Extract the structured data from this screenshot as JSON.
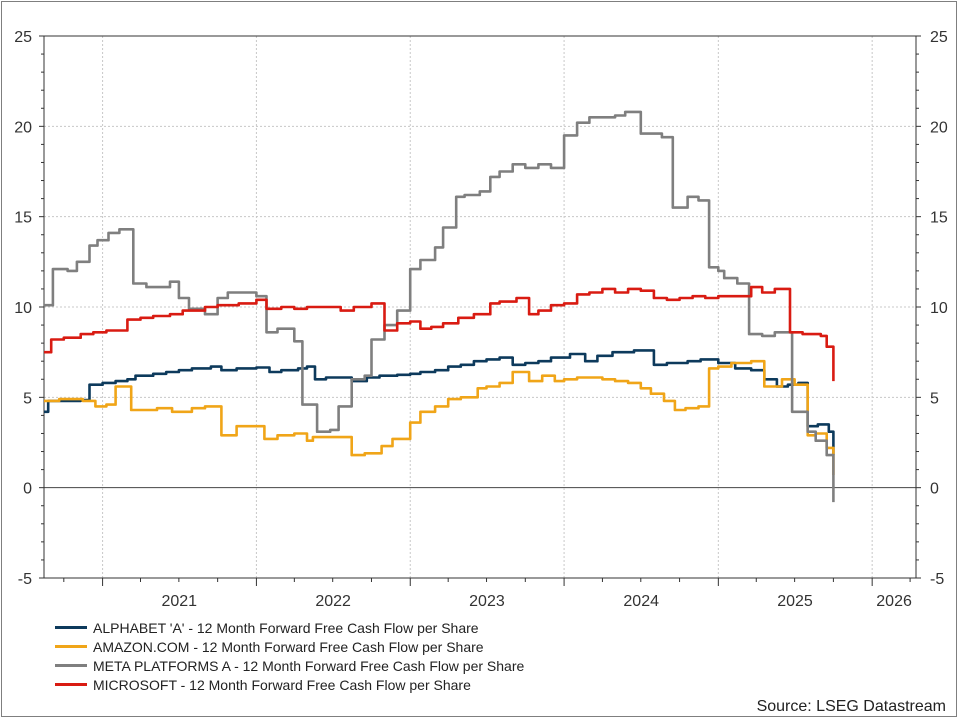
{
  "chart_data": {
    "type": "line",
    "ylim": [
      -5,
      25
    ],
    "yticks": [
      -5,
      0,
      5,
      10,
      15,
      20,
      25
    ],
    "x_range": [
      "2020-08-15",
      "2026-04-15"
    ],
    "x_tick_labels": [
      {
        "label": "2021",
        "date": "2021-01-01"
      },
      {
        "label": "2022",
        "date": "2022-01-01"
      },
      {
        "label": "2023",
        "date": "2023-01-01"
      },
      {
        "label": "2024",
        "date": "2024-01-01"
      },
      {
        "label": "2025",
        "date": "2025-01-01"
      },
      {
        "label": "2026",
        "date": "2026-01-01"
      }
    ],
    "grid": true,
    "step": true,
    "legend_position": "bottom-left",
    "series": [
      {
        "name": "ALPHABET 'A' - 12 Month Forward Free Cash Flow per Share",
        "color": "#0d3a5c",
        "points": [
          [
            "2020-08-15",
            4.2
          ],
          [
            "2020-08-25",
            4.8
          ],
          [
            "2020-10-01",
            4.8
          ],
          [
            "2020-11-10",
            4.85
          ],
          [
            "2020-12-01",
            5.7
          ],
          [
            "2021-01-01",
            5.8
          ],
          [
            "2021-02-01",
            5.9
          ],
          [
            "2021-03-01",
            6.0
          ],
          [
            "2021-03-20",
            6.2
          ],
          [
            "2021-05-01",
            6.3
          ],
          [
            "2021-06-01",
            6.4
          ],
          [
            "2021-07-01",
            6.5
          ],
          [
            "2021-08-01",
            6.6
          ],
          [
            "2021-09-15",
            6.7
          ],
          [
            "2021-10-10",
            6.5
          ],
          [
            "2021-11-15",
            6.6
          ],
          [
            "2022-01-01",
            6.65
          ],
          [
            "2022-02-01",
            6.4
          ],
          [
            "2022-03-01",
            6.5
          ],
          [
            "2022-04-10",
            6.6
          ],
          [
            "2022-05-01",
            6.7
          ],
          [
            "2022-05-20",
            6.0
          ],
          [
            "2022-06-15",
            6.1
          ],
          [
            "2022-08-15",
            5.9
          ],
          [
            "2022-09-20",
            6.1
          ],
          [
            "2022-10-20",
            6.2
          ],
          [
            "2022-12-01",
            6.25
          ],
          [
            "2023-01-01",
            6.3
          ],
          [
            "2023-01-25",
            6.4
          ],
          [
            "2023-03-01",
            6.5
          ],
          [
            "2023-04-01",
            6.7
          ],
          [
            "2023-05-01",
            6.8
          ],
          [
            "2023-06-01",
            7.0
          ],
          [
            "2023-07-01",
            7.1
          ],
          [
            "2023-08-01",
            7.2
          ],
          [
            "2023-09-01",
            6.8
          ],
          [
            "2023-10-01",
            6.9
          ],
          [
            "2023-11-01",
            7.0
          ],
          [
            "2023-12-01",
            7.2
          ],
          [
            "2024-01-15",
            7.4
          ],
          [
            "2024-02-20",
            7.0
          ],
          [
            "2024-03-20",
            7.3
          ],
          [
            "2024-04-25",
            7.5
          ],
          [
            "2024-06-15",
            7.6
          ],
          [
            "2024-08-01",
            6.8
          ],
          [
            "2024-09-01",
            6.9
          ],
          [
            "2024-10-20",
            7.0
          ],
          [
            "2024-11-20",
            7.1
          ],
          [
            "2025-01-01",
            6.9
          ],
          [
            "2025-02-10",
            6.6
          ],
          [
            "2025-03-20",
            6.5
          ],
          [
            "2025-04-20",
            6.0
          ],
          [
            "2025-05-20",
            5.6
          ],
          [
            "2025-06-15",
            5.7
          ],
          [
            "2025-07-10",
            5.8
          ],
          [
            "2025-08-01",
            3.4
          ],
          [
            "2025-08-25",
            3.5
          ],
          [
            "2025-09-20",
            3.1
          ],
          [
            "2025-10-01",
            1.8
          ]
        ]
      },
      {
        "name": "AMAZON.COM - 12 Month Forward Free Cash Flow per Share",
        "color": "#f0a518",
        "points": [
          [
            "2020-08-15",
            4.8
          ],
          [
            "2020-09-20",
            4.9
          ],
          [
            "2020-11-15",
            4.8
          ],
          [
            "2020-12-15",
            4.5
          ],
          [
            "2021-01-10",
            4.6
          ],
          [
            "2021-02-01",
            5.6
          ],
          [
            "2021-03-10",
            4.3
          ],
          [
            "2021-05-10",
            4.4
          ],
          [
            "2021-06-15",
            4.2
          ],
          [
            "2021-08-01",
            4.4
          ],
          [
            "2021-09-01",
            4.5
          ],
          [
            "2021-10-10",
            2.9
          ],
          [
            "2021-11-15",
            3.4
          ],
          [
            "2022-01-20",
            2.7
          ],
          [
            "2022-02-20",
            2.9
          ],
          [
            "2022-04-01",
            3.0
          ],
          [
            "2022-05-01",
            2.6
          ],
          [
            "2022-05-15",
            2.8
          ],
          [
            "2022-08-15",
            1.8
          ],
          [
            "2022-09-15",
            1.9
          ],
          [
            "2022-10-25",
            2.3
          ],
          [
            "2022-11-20",
            2.7
          ],
          [
            "2023-01-01",
            3.6
          ],
          [
            "2023-01-25",
            4.2
          ],
          [
            "2023-03-01",
            4.5
          ],
          [
            "2023-04-01",
            4.9
          ],
          [
            "2023-05-01",
            5.0
          ],
          [
            "2023-06-10",
            5.5
          ],
          [
            "2023-07-01",
            5.6
          ],
          [
            "2023-08-01",
            5.8
          ],
          [
            "2023-09-01",
            6.4
          ],
          [
            "2023-10-10",
            5.9
          ],
          [
            "2023-11-10",
            6.2
          ],
          [
            "2023-12-10",
            5.9
          ],
          [
            "2024-01-01",
            6.0
          ],
          [
            "2024-02-01",
            6.1
          ],
          [
            "2024-04-01",
            6.0
          ],
          [
            "2024-05-01",
            5.9
          ],
          [
            "2024-06-01",
            5.8
          ],
          [
            "2024-07-01",
            5.5
          ],
          [
            "2024-07-25",
            5.2
          ],
          [
            "2024-08-25",
            4.8
          ],
          [
            "2024-09-20",
            4.3
          ],
          [
            "2024-10-15",
            4.4
          ],
          [
            "2024-11-15",
            4.5
          ],
          [
            "2024-12-10",
            6.6
          ],
          [
            "2025-01-01",
            6.7
          ],
          [
            "2025-02-01",
            6.9
          ],
          [
            "2025-03-20",
            7.0
          ],
          [
            "2025-04-20",
            5.6
          ],
          [
            "2025-06-01",
            6.0
          ],
          [
            "2025-07-01",
            5.7
          ],
          [
            "2025-08-01",
            2.9
          ],
          [
            "2025-08-20",
            3.0
          ],
          [
            "2025-09-15",
            2.2
          ],
          [
            "2025-10-01",
            0.7
          ]
        ]
      },
      {
        "name": "META PLATFORMS A - 12 Month Forward Free Cash Flow per Share",
        "color": "#7f7f7f",
        "points": [
          [
            "2020-08-15",
            10.1
          ],
          [
            "2020-09-05",
            12.1
          ],
          [
            "2020-10-10",
            12.0
          ],
          [
            "2020-11-01",
            12.5
          ],
          [
            "2020-12-01",
            13.4
          ],
          [
            "2020-12-20",
            13.7
          ],
          [
            "2021-01-15",
            14.1
          ],
          [
            "2021-02-10",
            14.3
          ],
          [
            "2021-03-15",
            11.3
          ],
          [
            "2021-04-15",
            11.1
          ],
          [
            "2021-05-15",
            11.1
          ],
          [
            "2021-06-10",
            11.4
          ],
          [
            "2021-07-01",
            10.5
          ],
          [
            "2021-07-25",
            9.9
          ],
          [
            "2021-09-01",
            9.6
          ],
          [
            "2021-10-01",
            10.5
          ],
          [
            "2021-10-25",
            10.8
          ],
          [
            "2022-01-01",
            10.6
          ],
          [
            "2022-01-25",
            8.6
          ],
          [
            "2022-02-20",
            8.8
          ],
          [
            "2022-04-01",
            8.1
          ],
          [
            "2022-04-20",
            4.6
          ],
          [
            "2022-05-25",
            3.1
          ],
          [
            "2022-06-25",
            3.2
          ],
          [
            "2022-07-15",
            4.5
          ],
          [
            "2022-08-15",
            6.0
          ],
          [
            "2022-09-15",
            6.2
          ],
          [
            "2022-10-01",
            8.2
          ],
          [
            "2022-11-01",
            9.0
          ],
          [
            "2022-12-01",
            9.8
          ],
          [
            "2023-01-01",
            12.1
          ],
          [
            "2023-01-25",
            12.6
          ],
          [
            "2023-03-01",
            13.3
          ],
          [
            "2023-03-20",
            14.4
          ],
          [
            "2023-04-20",
            16.1
          ],
          [
            "2023-05-10",
            16.2
          ],
          [
            "2023-06-15",
            16.4
          ],
          [
            "2023-07-10",
            17.2
          ],
          [
            "2023-08-01",
            17.5
          ],
          [
            "2023-09-01",
            17.9
          ],
          [
            "2023-10-01",
            17.7
          ],
          [
            "2023-11-01",
            17.9
          ],
          [
            "2023-12-01",
            17.7
          ],
          [
            "2024-01-01",
            19.5
          ],
          [
            "2024-02-01",
            20.2
          ],
          [
            "2024-03-01",
            20.5
          ],
          [
            "2024-05-01",
            20.6
          ],
          [
            "2024-05-25",
            20.8
          ],
          [
            "2024-07-01",
            19.6
          ],
          [
            "2024-08-20",
            19.4
          ],
          [
            "2024-09-15",
            15.5
          ],
          [
            "2024-10-20",
            16.1
          ],
          [
            "2024-11-15",
            15.9
          ],
          [
            "2024-12-10",
            12.2
          ],
          [
            "2025-01-01",
            12.0
          ],
          [
            "2025-01-15",
            11.6
          ],
          [
            "2025-02-15",
            11.3
          ],
          [
            "2025-03-15",
            8.5
          ],
          [
            "2025-04-15",
            8.4
          ],
          [
            "2025-05-15",
            8.6
          ],
          [
            "2025-06-25",
            4.2
          ],
          [
            "2025-08-01",
            3.1
          ],
          [
            "2025-08-20",
            2.6
          ],
          [
            "2025-09-15",
            1.8
          ],
          [
            "2025-10-01",
            -0.8
          ]
        ]
      },
      {
        "name": "MICROSOFT - 12 Month Forward Free Cash Flow per Share",
        "color": "#d91b12",
        "points": [
          [
            "2020-08-15",
            7.5
          ],
          [
            "2020-09-01",
            8.2
          ],
          [
            "2020-10-01",
            8.3
          ],
          [
            "2020-11-10",
            8.5
          ],
          [
            "2020-12-10",
            8.6
          ],
          [
            "2021-01-10",
            8.7
          ],
          [
            "2021-03-01",
            9.3
          ],
          [
            "2021-04-01",
            9.4
          ],
          [
            "2021-05-01",
            9.5
          ],
          [
            "2021-06-10",
            9.6
          ],
          [
            "2021-07-10",
            9.8
          ],
          [
            "2021-09-01",
            10.0
          ],
          [
            "2021-10-01",
            10.1
          ],
          [
            "2021-11-20",
            10.2
          ],
          [
            "2022-01-01",
            10.4
          ],
          [
            "2022-01-25",
            9.9
          ],
          [
            "2022-03-01",
            10.0
          ],
          [
            "2022-04-01",
            9.9
          ],
          [
            "2022-05-01",
            10.0
          ],
          [
            "2022-07-20",
            9.8
          ],
          [
            "2022-08-20",
            10.0
          ],
          [
            "2022-10-01",
            10.2
          ],
          [
            "2022-11-01",
            8.7
          ],
          [
            "2022-12-01",
            9.1
          ],
          [
            "2023-01-01",
            9.2
          ],
          [
            "2023-01-25",
            8.8
          ],
          [
            "2023-02-20",
            8.9
          ],
          [
            "2023-03-20",
            9.1
          ],
          [
            "2023-04-25",
            9.4
          ],
          [
            "2023-06-01",
            9.6
          ],
          [
            "2023-07-10",
            10.2
          ],
          [
            "2023-08-01",
            10.3
          ],
          [
            "2023-09-10",
            10.5
          ],
          [
            "2023-10-10",
            9.6
          ],
          [
            "2023-11-01",
            9.8
          ],
          [
            "2023-12-01",
            10.1
          ],
          [
            "2024-01-01",
            10.2
          ],
          [
            "2024-02-01",
            10.7
          ],
          [
            "2024-03-01",
            10.8
          ],
          [
            "2024-04-01",
            11.0
          ],
          [
            "2024-05-01",
            10.8
          ],
          [
            "2024-06-01",
            11.0
          ],
          [
            "2024-07-01",
            10.9
          ],
          [
            "2024-08-01",
            10.5
          ],
          [
            "2024-09-01",
            10.4
          ],
          [
            "2024-10-01",
            10.5
          ],
          [
            "2024-11-01",
            10.6
          ],
          [
            "2024-12-01",
            10.5
          ],
          [
            "2025-01-01",
            10.6
          ],
          [
            "2025-03-20",
            11.1
          ],
          [
            "2025-04-15",
            10.8
          ],
          [
            "2025-05-15",
            11.0
          ],
          [
            "2025-06-20",
            8.6
          ],
          [
            "2025-07-20",
            8.5
          ],
          [
            "2025-09-01",
            8.4
          ],
          [
            "2025-09-15",
            7.8
          ],
          [
            "2025-10-01",
            5.9
          ]
        ]
      }
    ],
    "source_label": "Source: LSEG Datastream"
  }
}
